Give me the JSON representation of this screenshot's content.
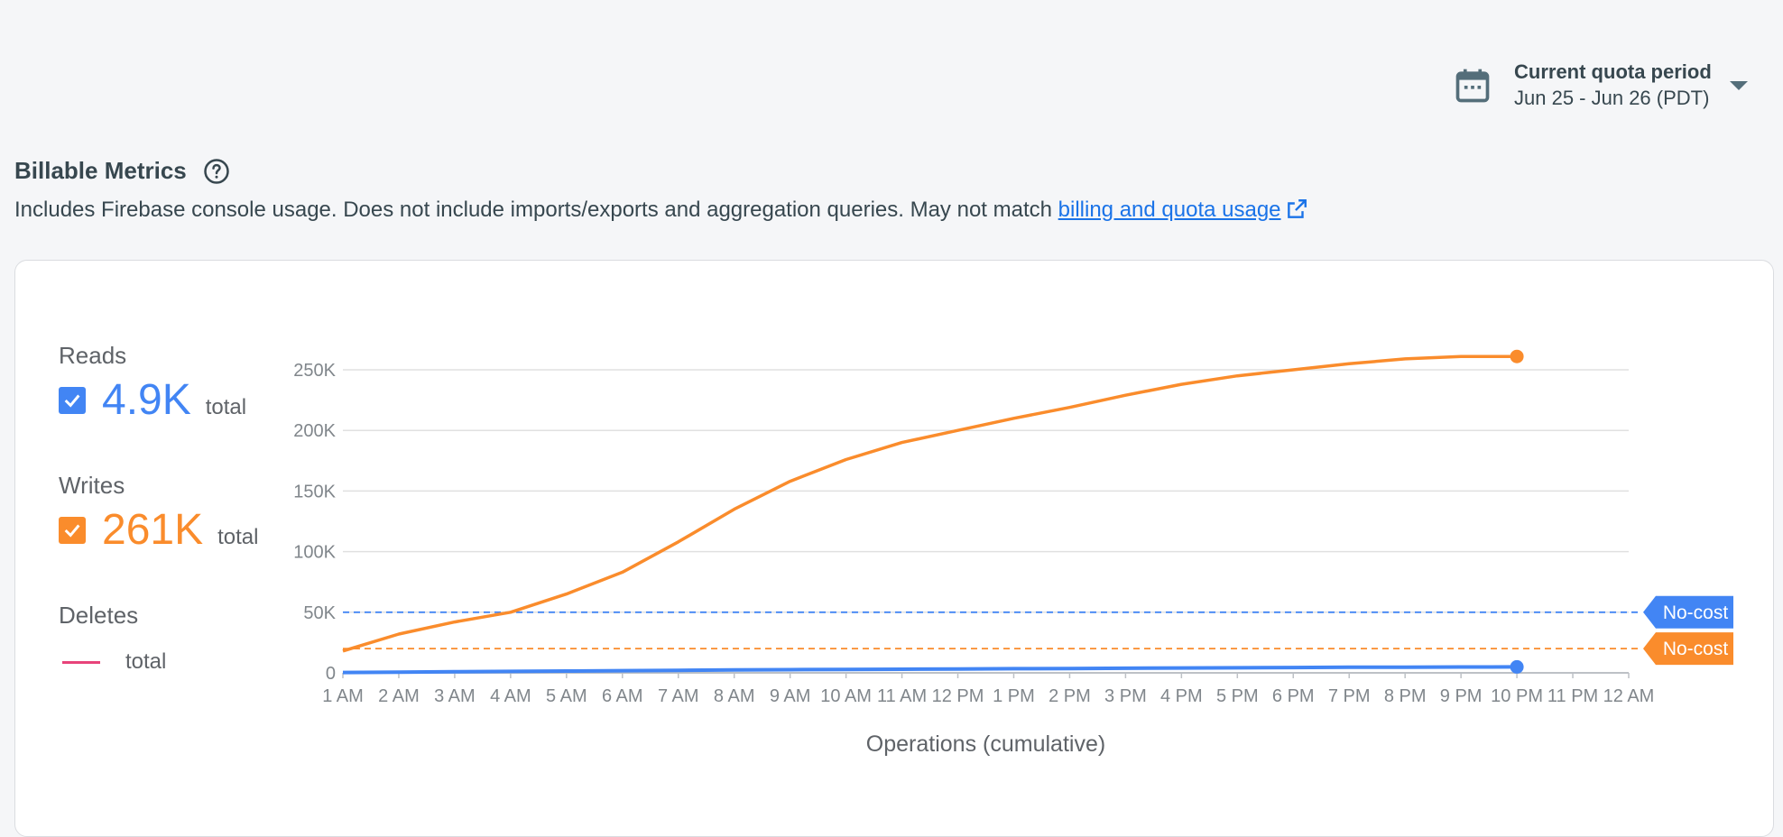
{
  "quota": {
    "title": "Current quota period",
    "range": "Jun 25 - Jun 26 (PDT)"
  },
  "billable": {
    "title": "Billable Metrics",
    "description": "Includes Firebase console usage. Does not include imports/exports and aggregation queries. May not match ",
    "link_text": "billing and quota usage"
  },
  "metrics": {
    "reads": {
      "label": "Reads",
      "value": "4.9K",
      "unit": "total",
      "checked": true,
      "color": "#4285f4"
    },
    "writes": {
      "label": "Writes",
      "value": "261K",
      "unit": "total",
      "checked": true,
      "color": "#fa8c2c"
    },
    "deletes": {
      "label": "Deletes",
      "unit": "total",
      "color": "#e8437a"
    }
  },
  "chart_data": {
    "type": "line",
    "xlabel": "Operations (cumulative)",
    "ylabel": "",
    "x": [
      "1 AM",
      "2 AM",
      "3 AM",
      "4 AM",
      "5 AM",
      "6 AM",
      "7 AM",
      "8 AM",
      "9 AM",
      "10 AM",
      "11 AM",
      "12 PM",
      "1 PM",
      "2 PM",
      "3 PM",
      "4 PM",
      "5 PM",
      "6 PM",
      "7 PM",
      "8 PM",
      "9 PM",
      "10 PM",
      "11 PM",
      "12 AM"
    ],
    "ylim": [
      0,
      250000
    ],
    "yticks": [
      "0",
      "50K",
      "100K",
      "150K",
      "200K",
      "250K"
    ],
    "grid": true,
    "series": [
      {
        "name": "Writes",
        "color": "#fa8c2c",
        "values": [
          18000,
          32000,
          42000,
          50000,
          65000,
          83000,
          108000,
          135000,
          158000,
          176000,
          190000,
          200000,
          210000,
          219000,
          229000,
          238000,
          245000,
          250000,
          255000,
          259000,
          261000,
          261000,
          null,
          null
        ]
      },
      {
        "name": "Reads",
        "color": "#4285f4",
        "values": [
          300,
          600,
          900,
          1200,
          1500,
          1800,
          2100,
          2400,
          2600,
          2800,
          3000,
          3200,
          3400,
          3600,
          3800,
          4000,
          4200,
          4400,
          4600,
          4700,
          4800,
          4900,
          null,
          null
        ]
      }
    ],
    "thresholds": [
      {
        "label": "No-cost",
        "value": 50000,
        "color": "#4285f4"
      },
      {
        "label": "No-cost",
        "value": 20000,
        "color": "#fa8c2c"
      }
    ]
  }
}
